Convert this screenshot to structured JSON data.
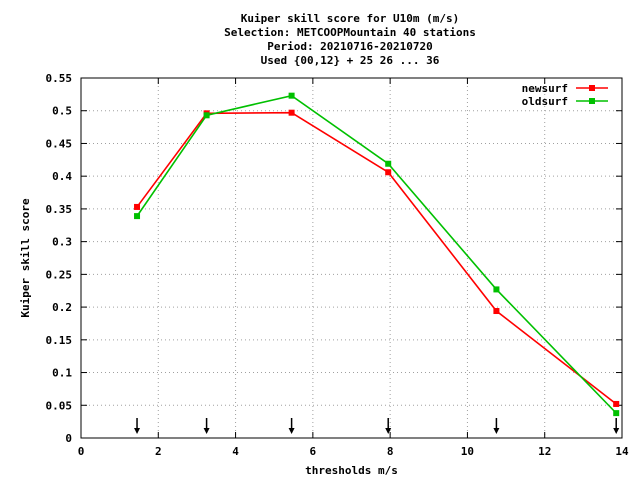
{
  "chart_data": {
    "type": "line",
    "title": [
      "Kuiper skill score  for U10m (m/s)",
      "Selection: METCOOPMountain     40 stations",
      "Period: 20210716-20210720",
      "Used {00,12} + 25 26 ... 36"
    ],
    "xlabel": "thresholds m/s",
    "ylabel": "Kuiper skill score",
    "xlim": [
      0,
      14
    ],
    "ylim": [
      0,
      0.55
    ],
    "xticks": [
      0,
      2,
      4,
      6,
      8,
      10,
      12,
      14
    ],
    "xtick_labels": [
      "0",
      "2",
      "4",
      "6",
      "8",
      "10",
      "12",
      "14"
    ],
    "yticks": [
      0,
      0.05,
      0.1,
      0.15,
      0.2,
      0.25,
      0.3,
      0.35,
      0.4,
      0.45,
      0.5,
      0.55
    ],
    "ytick_labels": [
      "0",
      "0.05",
      "0.1",
      "0.15",
      "0.2",
      "0.25",
      "0.3",
      "0.35",
      "0.4",
      "0.45",
      "0.5",
      "0.55"
    ],
    "grid": true,
    "legend_position": "top-right",
    "threshold_arrows": [
      1.45,
      3.25,
      5.45,
      7.95,
      10.75,
      13.85
    ],
    "series": [
      {
        "name": "newsurf",
        "color": "#ff0000",
        "x": [
          1.45,
          3.25,
          5.45,
          7.95,
          10.75,
          13.85
        ],
        "y": [
          0.353,
          0.496,
          0.497,
          0.406,
          0.194,
          0.052
        ]
      },
      {
        "name": "oldsurf",
        "color": "#00c000",
        "x": [
          1.45,
          3.25,
          5.45,
          7.95,
          10.75,
          13.85
        ],
        "y": [
          0.339,
          0.493,
          0.523,
          0.419,
          0.227,
          0.038
        ]
      }
    ]
  }
}
